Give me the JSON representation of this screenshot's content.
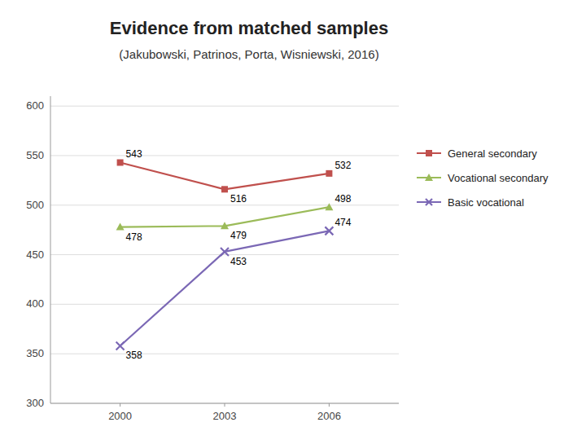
{
  "chart_data": {
    "type": "line",
    "title": "Evidence from matched samples",
    "subtitle": "(Jakubowski, Patrinos, Porta, Wisniewski, 2016)",
    "x": [
      2000,
      2003,
      2006
    ],
    "series": [
      {
        "name": "General secondary",
        "values": [
          543,
          516,
          532
        ],
        "color": "#C0504D",
        "marker": "square"
      },
      {
        "name": "Vocational secondary",
        "values": [
          478,
          479,
          498
        ],
        "color": "#9BBB59",
        "marker": "triangle"
      },
      {
        "name": "Basic vocational",
        "values": [
          358,
          453,
          474
        ],
        "color": "#7B68B5",
        "marker": "x"
      }
    ],
    "xlim": [
      1998,
      2008
    ],
    "xticks": [
      2000,
      2003,
      2006
    ],
    "ylim": [
      300,
      610
    ],
    "yticks": [
      300,
      350,
      400,
      450,
      500,
      550,
      600
    ],
    "grid": true,
    "legend": "right",
    "data_labels": true
  }
}
